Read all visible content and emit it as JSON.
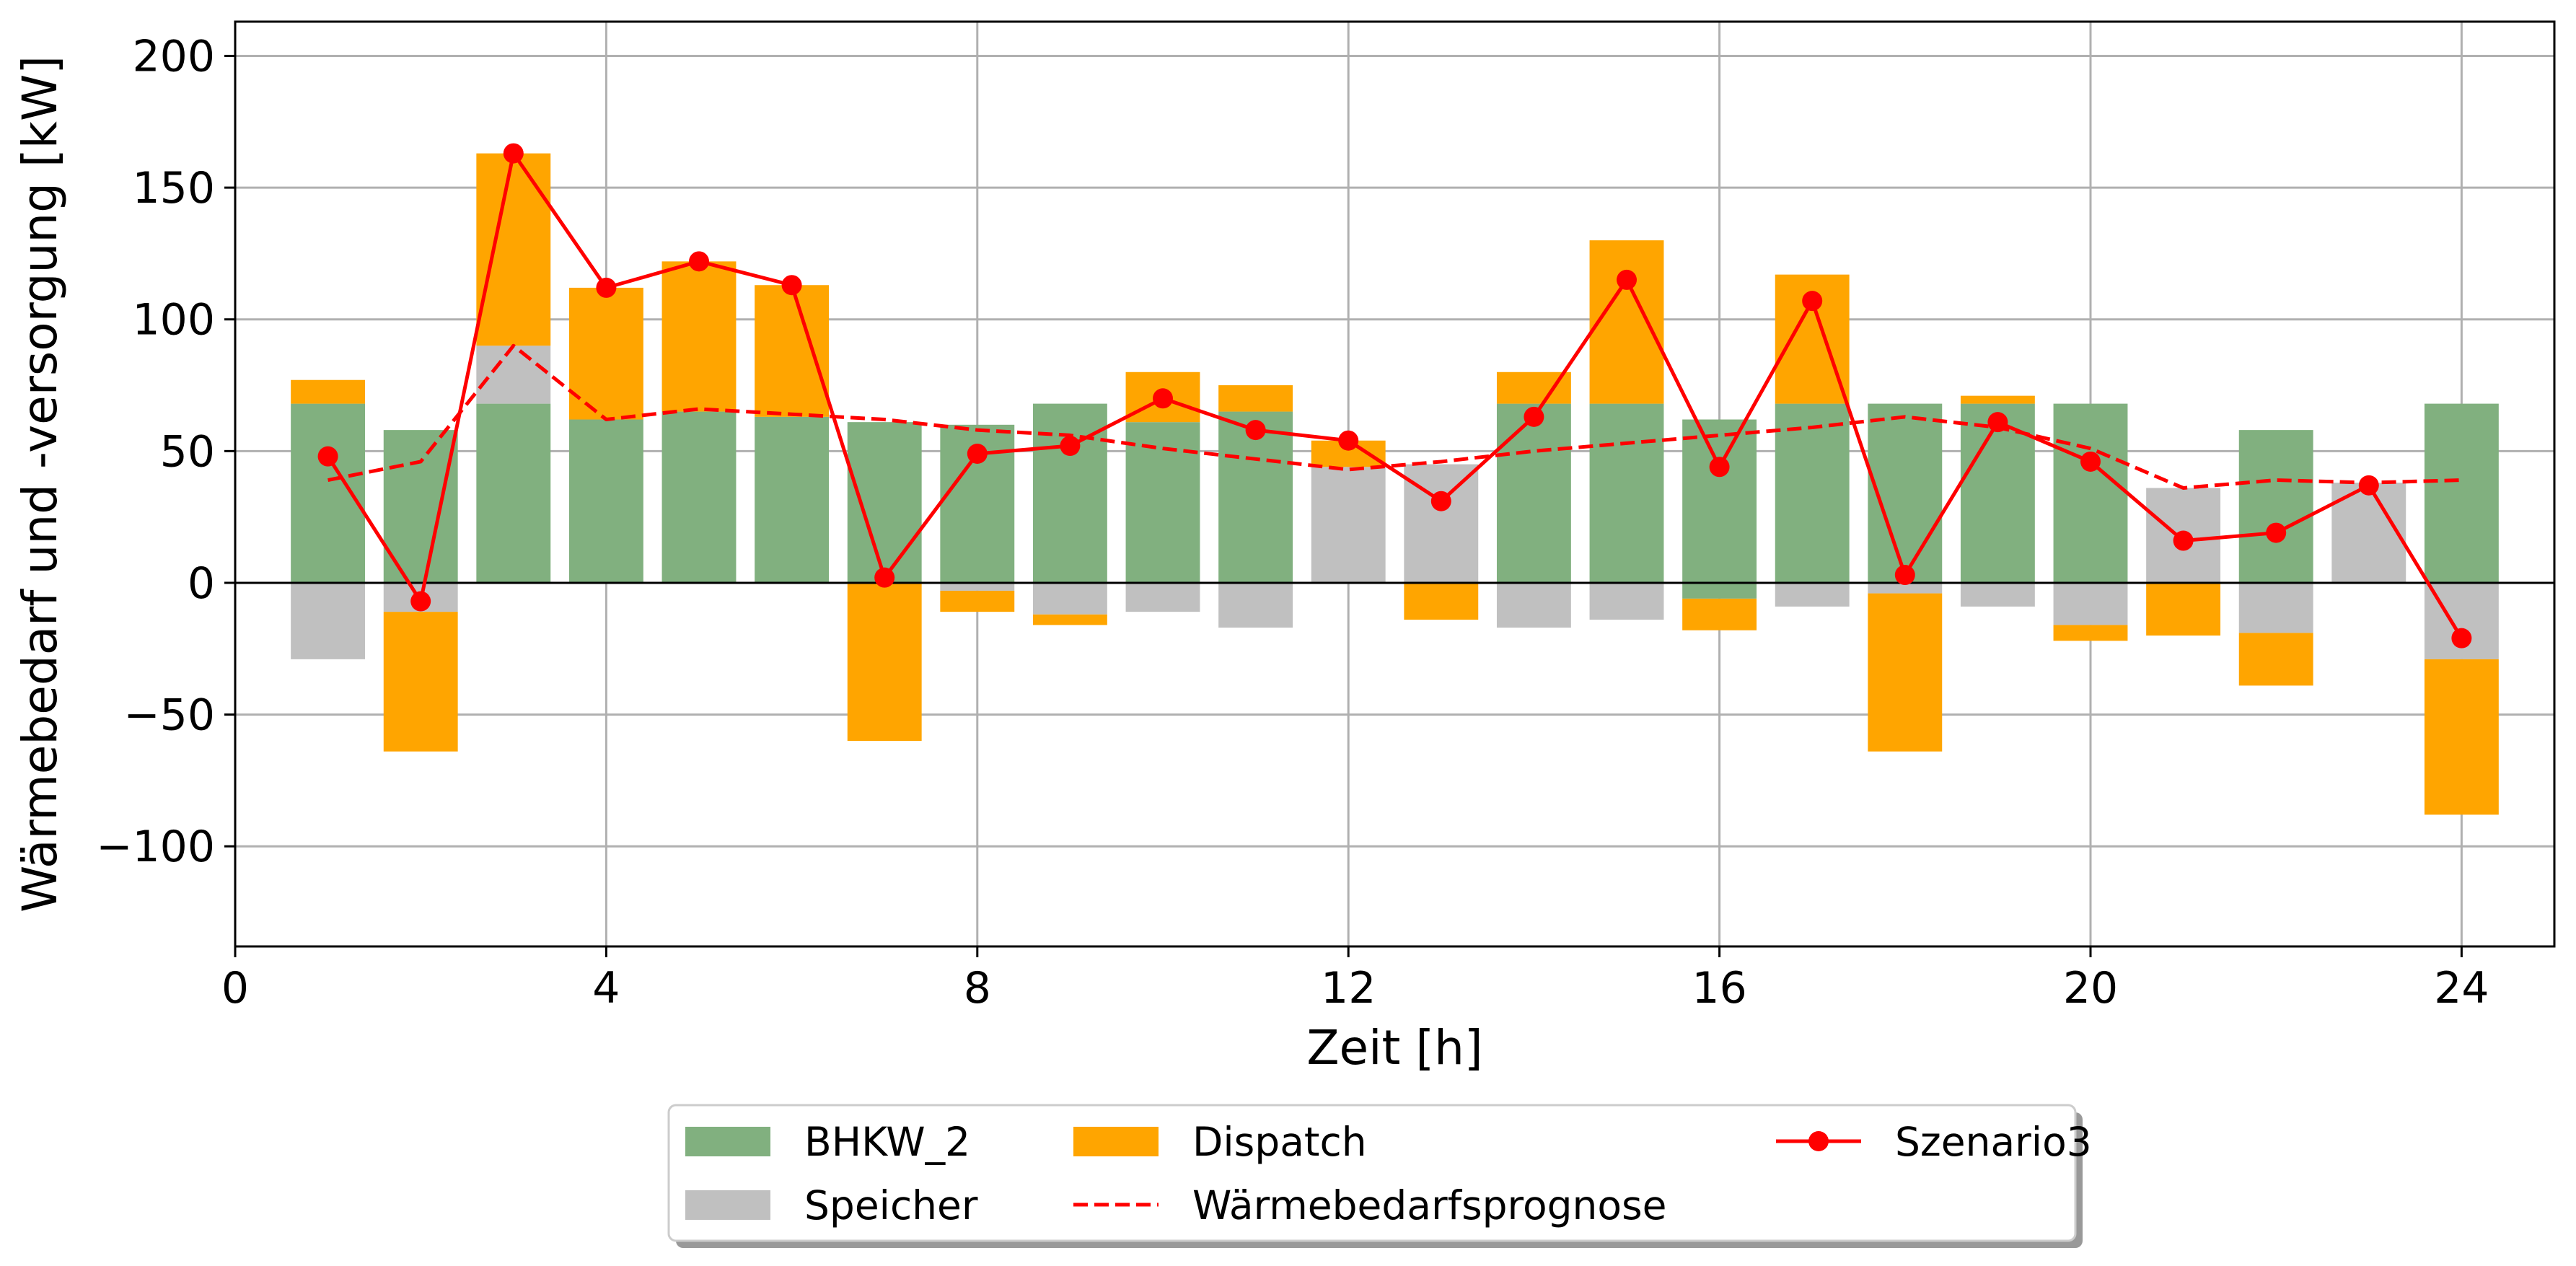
{
  "chart_data": {
    "type": "bar",
    "xlabel": "Zeit [h]",
    "ylabel": "Wärmebedarf und -versorgung [kW]",
    "xlim": [
      0,
      25
    ],
    "ylim": [
      -138,
      213
    ],
    "xticks": [
      0,
      4,
      8,
      12,
      16,
      20,
      24
    ],
    "yticks": [
      -100,
      -50,
      0,
      50,
      100,
      150,
      200
    ],
    "grid": true,
    "legend_position": "bottom-center",
    "x": [
      1,
      2,
      3,
      4,
      5,
      6,
      7,
      8,
      9,
      10,
      11,
      12,
      13,
      14,
      15,
      16,
      17,
      18,
      19,
      20,
      21,
      22,
      23,
      24
    ],
    "bars": [
      {
        "name": "BHKW_2",
        "color": "#81b07f",
        "pos": [
          68,
          58,
          68,
          62,
          65,
          63,
          61,
          60,
          68,
          61,
          65,
          0,
          0,
          68,
          68,
          62,
          68,
          68,
          68,
          68,
          0,
          58,
          0,
          68
        ],
        "neg": [
          0,
          0,
          0,
          0,
          0,
          0,
          0,
          0,
          0,
          0,
          0,
          0,
          0,
          0,
          0,
          -6,
          0,
          0,
          0,
          0,
          0,
          0,
          0,
          0
        ]
      },
      {
        "name": "Speicher",
        "color": "#c0c0c0",
        "pos": [
          0,
          0,
          22,
          0,
          0,
          0,
          0,
          0,
          0,
          0,
          0,
          44,
          45,
          0,
          0,
          0,
          0,
          0,
          0,
          0,
          36,
          0,
          38,
          0
        ],
        "neg": [
          -29,
          -11,
          0,
          0,
          0,
          0,
          0,
          -3,
          -12,
          -11,
          -17,
          0,
          0,
          -17,
          -14,
          0,
          -9,
          -4,
          -9,
          -16,
          0,
          -19,
          0,
          -29
        ]
      },
      {
        "name": "Dispatch",
        "color": "#ffa500",
        "pos": [
          9,
          0,
          73,
          50,
          57,
          50,
          0,
          0,
          0,
          19,
          10,
          10,
          0,
          12,
          62,
          0,
          49,
          0,
          3,
          0,
          0,
          0,
          0,
          0
        ],
        "neg": [
          0,
          -53,
          0,
          0,
          0,
          0,
          -60,
          -8,
          -4,
          0,
          0,
          0,
          -14,
          0,
          0,
          -12,
          0,
          -60,
          0,
          -6,
          -20,
          -20,
          0,
          -59
        ]
      }
    ],
    "series": [
      {
        "name": "Wärmebedarfsprognose",
        "color": "#ff0000",
        "style": "dashed",
        "values": [
          39,
          46,
          90,
          62,
          66,
          64,
          62,
          58,
          56,
          51,
          47,
          43,
          46,
          50,
          53,
          56,
          59,
          63,
          59,
          51,
          36,
          39,
          38,
          39
        ]
      },
      {
        "name": "Szenario3",
        "color": "#ff0000",
        "style": "solid-marker",
        "values": [
          48,
          -7,
          163,
          112,
          122,
          113,
          2,
          49,
          52,
          70,
          58,
          54,
          31,
          63,
          115,
          44,
          107,
          3,
          61,
          46,
          16,
          19,
          37,
          -21
        ]
      }
    ],
    "legend": [
      "BHKW_2",
      "Speicher",
      "Dispatch",
      "Wärmebedarfsprognose",
      "Szenario3"
    ]
  }
}
